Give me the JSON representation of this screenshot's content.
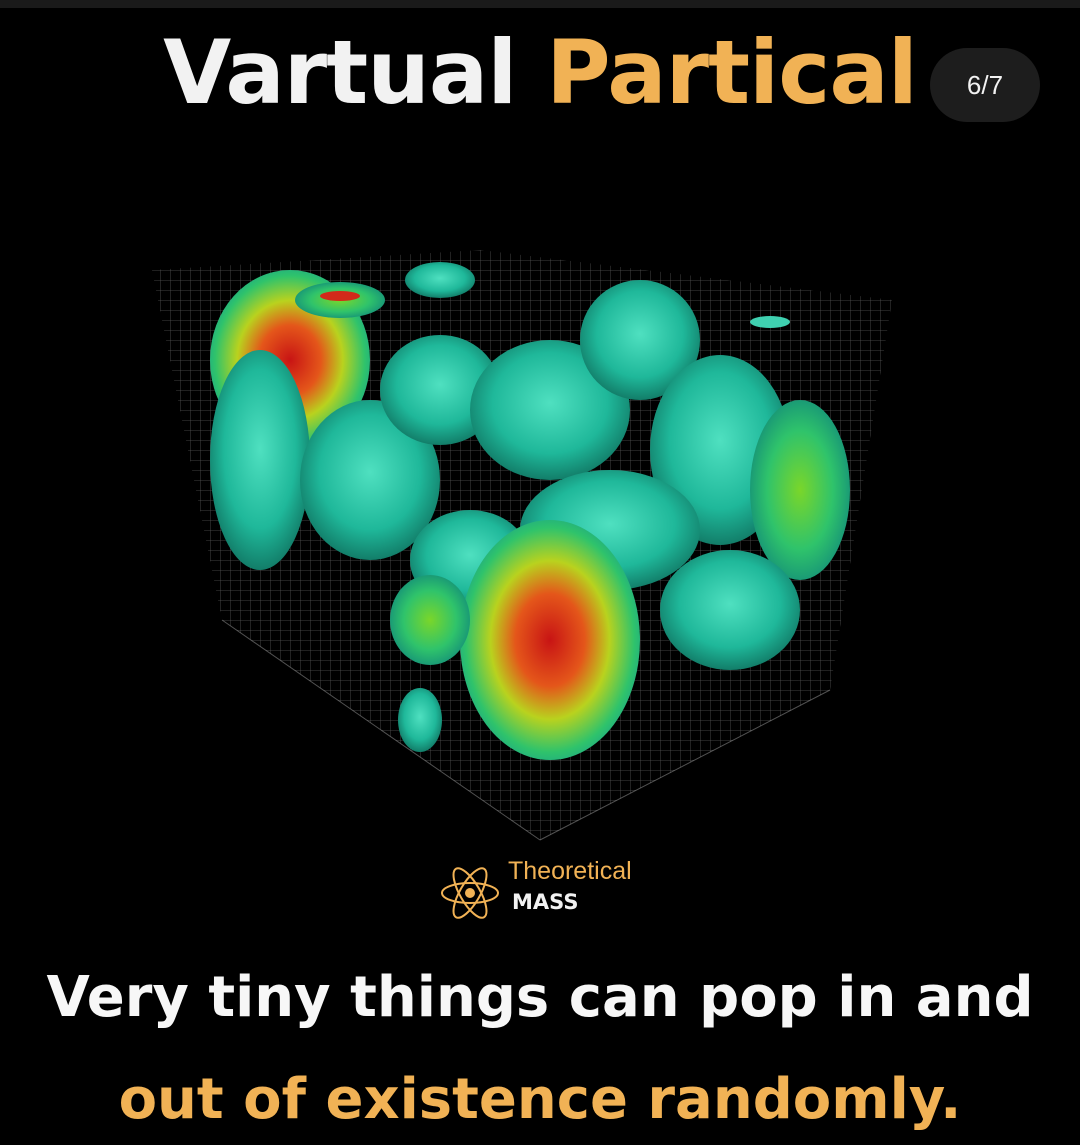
{
  "header": {
    "title_word1": "Vartual",
    "title_word2": "Partical",
    "counter": "6/7"
  },
  "image": {
    "description_icon": "isosurface-cube-visual"
  },
  "brand": {
    "line1": "Theoretical",
    "line2": "MASS",
    "icon": "atom-icon"
  },
  "caption": {
    "line1": "Very tiny things can pop in and",
    "line2": "out of existence randomly."
  },
  "colors": {
    "background": "#000000",
    "accent": "#f1b255",
    "text": "#f2f2f2"
  }
}
